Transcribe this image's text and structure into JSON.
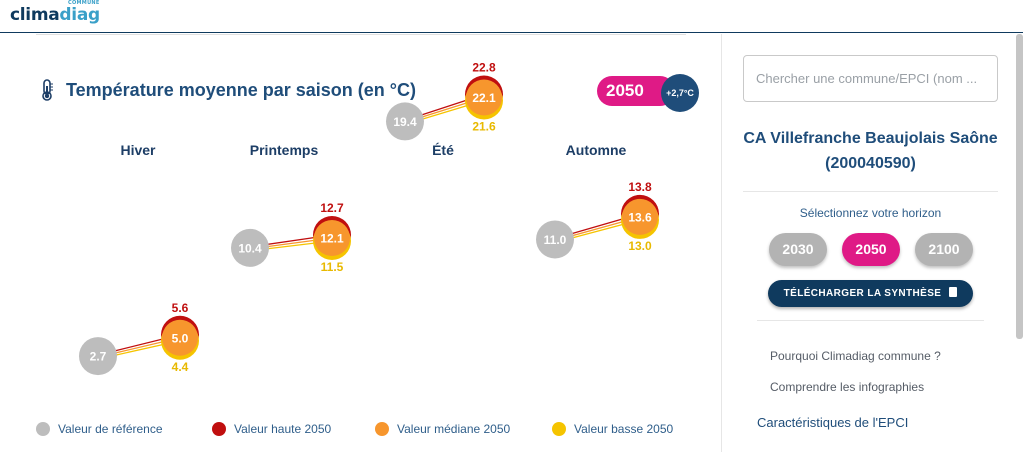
{
  "header": {
    "logo_main": "clima",
    "logo_accent": "diag",
    "logo_small": "COMMUNE"
  },
  "main": {
    "title": "Température moyenne par saison (en °C)",
    "horizon_badge": "2050",
    "warming_badge": "+2,7°C"
  },
  "chart_data": {
    "type": "scatter",
    "title": "Température moyenne par saison (en °C)",
    "categories": [
      "Hiver",
      "Printemps",
      "Été",
      "Automne"
    ],
    "series": [
      {
        "name": "Valeur de référence",
        "values": [
          2.7,
          10.4,
          19.4,
          11.0
        ],
        "labels": [
          "2.7",
          "10.4",
          "19.4",
          "11.0"
        ],
        "color": "#bdbdbd"
      },
      {
        "name": "Valeur haute 2050",
        "values": [
          5.6,
          12.7,
          22.8,
          13.8
        ],
        "labels": [
          "5.6",
          "12.7",
          "22.8",
          "13.8"
        ],
        "color": "#c00f0f"
      },
      {
        "name": "Valeur médiane 2050",
        "values": [
          5.0,
          12.1,
          22.1,
          13.6
        ],
        "labels": [
          "5.0",
          "12.1",
          "22.1",
          "13.6"
        ],
        "color": "#f7962d"
      },
      {
        "name": "Valeur basse 2050",
        "values": [
          4.4,
          11.5,
          21.6,
          13.0
        ],
        "labels": [
          "4.4",
          "11.5",
          "21.6",
          "13.0"
        ],
        "color": "#f5c400"
      }
    ]
  },
  "legend": [
    {
      "label": "Valeur de référence",
      "color": "#bdbdbd"
    },
    {
      "label": "Valeur haute 2050",
      "color": "#c00f0f"
    },
    {
      "label": "Valeur médiane 2050",
      "color": "#f7962d"
    },
    {
      "label": "Valeur basse 2050",
      "color": "#f5c400"
    }
  ],
  "sidebar": {
    "search_placeholder": "Chercher une commune/EPCI (nom ...",
    "epci_name": "CA Villefranche Beaujolais Saône (200040590)",
    "horizon_label": "Sélectionnez votre horizon",
    "horizons": [
      "2030",
      "2050",
      "2100"
    ],
    "active_horizon": "2050",
    "download_label": "TÉLÉCHARGER LA SYNTHÈSE",
    "links": [
      "Pourquoi Climadiag commune ?",
      "Comprendre les infographies"
    ],
    "section": "Caractéristiques de l'EPCI"
  },
  "colors": {
    "accent": "#df1a86",
    "navy": "#0f3a5e",
    "title_blue": "#1f4d7a"
  }
}
